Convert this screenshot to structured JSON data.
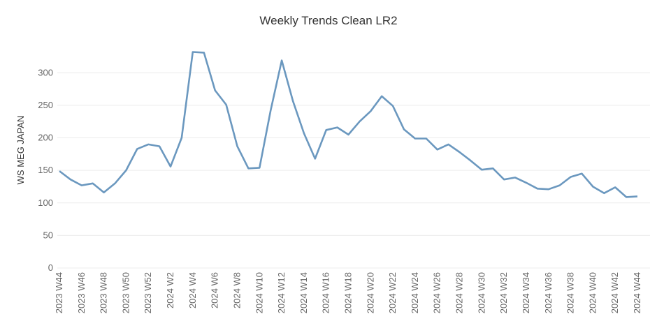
{
  "chart_data": {
    "type": "line",
    "title": "Weekly Trends Clean LR2",
    "xlabel": "",
    "ylabel": "WS MEG JAPAN",
    "ylim": [
      0,
      340
    ],
    "yticks": [
      0,
      50,
      100,
      150,
      200,
      250,
      300
    ],
    "grid": "horizontal",
    "legend": "none",
    "line_color": "#6b98bf",
    "x": [
      "2023 W44",
      "2023 W45",
      "2023 W46",
      "2023 W47",
      "2023 W48",
      "2023 W49",
      "2023 W50",
      "2023 W51",
      "2023 W52",
      "2024 W1",
      "2024 W2",
      "2024 W3",
      "2024 W4",
      "2024 W5",
      "2024 W6",
      "2024 W7",
      "2024 W8",
      "2024 W9",
      "2024 W10",
      "2024 W11",
      "2024 W12",
      "2024 W13",
      "2024 W14",
      "2024 W15",
      "2024 W16",
      "2024 W17",
      "2024 W18",
      "2024 W19",
      "2024 W20",
      "2024 W21",
      "2024 W22",
      "2024 W23",
      "2024 W24",
      "2024 W25",
      "2024 W26",
      "2024 W27",
      "2024 W28",
      "2024 W29",
      "2024 W30",
      "2024 W31",
      "2024 W32",
      "2024 W33",
      "2024 W34",
      "2024 W35",
      "2024 W36",
      "2024 W37",
      "2024 W38",
      "2024 W39",
      "2024 W40",
      "2024 W41",
      "2024 W42",
      "2024 W43",
      "2024 W44"
    ],
    "xtick_labels": [
      "2023 W44",
      "2023 W46",
      "2023 W48",
      "2023 W50",
      "2023 W52",
      "2024 W2",
      "2024 W4",
      "2024 W6",
      "2024 W8",
      "2024 W10",
      "2024 W12",
      "2024 W14",
      "2024 W16",
      "2024 W18",
      "2024 W20",
      "2024 W22",
      "2024 W24",
      "2024 W26",
      "2024 W28",
      "2024 W30",
      "2024 W32",
      "2024 W34",
      "2024 W36",
      "2024 W38",
      "2024 W40",
      "2024 W42",
      "2024 W44"
    ],
    "series": [
      {
        "values": [
          149,
          136,
          127,
          130,
          116,
          130,
          150,
          183,
          190,
          187,
          156,
          200,
          332,
          331,
          273,
          251,
          187,
          153,
          154,
          242,
          319,
          257,
          207,
          168,
          212,
          216,
          205,
          225,
          241,
          264,
          249,
          213,
          199,
          199,
          182,
          190,
          178,
          165,
          151,
          153,
          136,
          139,
          131,
          122,
          121,
          127,
          140,
          145,
          125,
          115,
          124,
          109,
          110
        ]
      }
    ]
  }
}
